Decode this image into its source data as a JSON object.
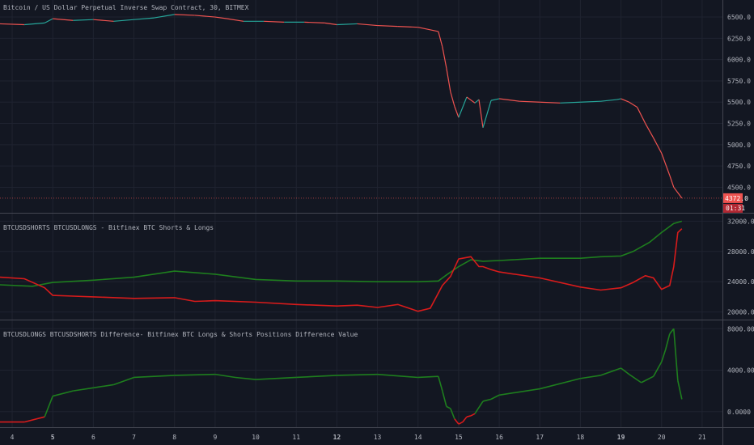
{
  "panes": {
    "price": {
      "title": "Bitcoin / US Dollar Perpetual Inverse Swap Contract, 30, BITMEX",
      "yticks": [
        "6500.0",
        "6250.0",
        "6000.0",
        "5750.0",
        "5500.0",
        "5250.0",
        "5000.0",
        "4750.0",
        "4500.0"
      ],
      "last_price_label": "4372.0",
      "countdown_label": "01:31"
    },
    "shorts_longs": {
      "title": "BTCUSDSHORTS BTCUSDLONGS - Bitfinex BTC Shorts & Longs",
      "yticks": [
        "32000.0000",
        "28000.0000",
        "24000.0000",
        "20000.0000"
      ]
    },
    "difference": {
      "title": "BTCUSDLONGS BTCUSDSHORTS Difference- Bitfinex BTC Longs & Shorts Positions Difference Value",
      "yticks": [
        "8000.0000",
        "4000.0000",
        "0.0000"
      ]
    }
  },
  "xticks": [
    "4",
    "5",
    "6",
    "7",
    "8",
    "9",
    "10",
    "11",
    "12",
    "13",
    "14",
    "15",
    "16",
    "17",
    "18",
    "19",
    "20",
    "21"
  ],
  "colors": {
    "background": "#131722",
    "grid": "#1f2330",
    "up": "#26a69a",
    "down": "#ef5350",
    "longs": "#1e7e1e",
    "shorts": "#d81b1b",
    "axis_text": "#b2b5be"
  },
  "chart_data": [
    {
      "type": "line",
      "pane": "price",
      "x_range": [
        3.7,
        21.5
      ],
      "ylim": [
        4200,
        6700
      ],
      "series": [
        {
          "x": [
            3.7,
            4.3,
            4.8,
            5.0,
            5.5,
            6.0,
            6.5,
            7.0,
            7.5,
            8.0,
            8.5,
            9.0,
            9.3,
            9.7,
            10.2,
            10.7,
            11.2,
            11.7,
            12.0,
            12.5,
            13.0,
            13.5,
            14.0,
            14.5,
            14.6,
            14.7,
            14.8,
            14.9,
            15.0,
            15.2,
            15.4,
            15.5,
            15.6,
            15.8,
            16.0,
            16.5,
            17.0,
            17.5,
            18.0,
            18.5,
            18.9,
            19.0,
            19.2,
            19.4,
            19.6,
            19.8,
            20.0,
            20.2,
            20.3,
            20.5
          ],
          "y": [
            6420,
            6410,
            6430,
            6480,
            6460,
            6470,
            6450,
            6470,
            6490,
            6530,
            6520,
            6500,
            6480,
            6450,
            6450,
            6440,
            6440,
            6430,
            6410,
            6420,
            6400,
            6390,
            6380,
            6330,
            6150,
            5900,
            5620,
            5450,
            5320,
            5560,
            5490,
            5530,
            5200,
            5520,
            5540,
            5510,
            5500,
            5490,
            5500,
            5510,
            5530,
            5540,
            5500,
            5440,
            5250,
            5080,
            4900,
            4640,
            4500,
            4372
          ]
        }
      ]
    },
    {
      "type": "line",
      "pane": "shorts_longs",
      "x_range": [
        3.7,
        21.5
      ],
      "ylim": [
        19000,
        33000
      ],
      "series": [
        {
          "x": [
            3.7,
            4.5,
            5.0,
            6.0,
            7.0,
            8.0,
            9.0,
            10.0,
            11.0,
            12.0,
            13.0,
            14.0,
            14.5,
            14.7,
            15.0,
            15.3,
            15.6,
            16.0,
            17.0,
            18.0,
            18.5,
            19.0,
            19.3,
            19.7,
            20.0,
            20.3,
            20.5
          ],
          "y": [
            23600,
            23400,
            23900,
            24200,
            24600,
            25400,
            25000,
            24300,
            24100,
            24100,
            24000,
            24000,
            24100,
            24900,
            26000,
            26900,
            26700,
            26800,
            27100,
            27100,
            27300,
            27400,
            28000,
            29200,
            30500,
            31700,
            32000
          ]
        },
        {
          "x": [
            3.7,
            4.3,
            4.8,
            5.0,
            5.5,
            6.0,
            7.0,
            8.0,
            8.5,
            9.0,
            10.0,
            11.0,
            12.0,
            12.5,
            13.0,
            13.5,
            14.0,
            14.3,
            14.6,
            14.8,
            15.0,
            15.3,
            15.5,
            15.6,
            15.8,
            16.0,
            17.0,
            18.0,
            18.5,
            19.0,
            19.3,
            19.6,
            19.8,
            20.0,
            20.2,
            20.3,
            20.4,
            20.5
          ],
          "y": [
            24600,
            24400,
            23200,
            22200,
            22100,
            22000,
            21800,
            21900,
            21400,
            21500,
            21300,
            21000,
            20800,
            20900,
            20600,
            21000,
            20100,
            20500,
            23500,
            24700,
            27000,
            27300,
            26000,
            26000,
            25600,
            25300,
            24500,
            23300,
            22900,
            23200,
            23900,
            24800,
            24500,
            23000,
            23500,
            26000,
            30500,
            31000
          ]
        }
      ]
    },
    {
      "type": "line",
      "pane": "difference",
      "x_range": [
        3.7,
        21.5
      ],
      "ylim": [
        -1500,
        8800
      ],
      "series": [
        {
          "x": [
            3.7,
            4.3,
            4.8,
            5.0,
            5.5,
            6.0,
            6.5,
            7.0,
            8.0,
            9.0,
            9.5,
            10.0,
            11.0,
            12.0,
            13.0,
            14.0,
            14.5,
            14.6,
            14.7,
            14.8,
            14.9,
            15.0,
            15.1,
            15.2,
            15.3,
            15.4,
            15.6,
            15.8,
            16.0,
            17.0,
            18.0,
            18.5,
            19.0,
            19.2,
            19.5,
            19.8,
            20.0,
            20.1,
            20.2,
            20.3,
            20.4,
            20.5
          ],
          "y": [
            -1000,
            -1000,
            -500,
            1500,
            2000,
            2300,
            2600,
            3300,
            3500,
            3600,
            3300,
            3100,
            3300,
            3500,
            3600,
            3300,
            3400,
            2000,
            500,
            300,
            -700,
            -1200,
            -1000,
            -500,
            -400,
            -200,
            1000,
            1200,
            1600,
            2200,
            3200,
            3500,
            4200,
            3600,
            2800,
            3400,
            4800,
            6000,
            7500,
            8000,
            3000,
            1200
          ]
        }
      ]
    }
  ]
}
